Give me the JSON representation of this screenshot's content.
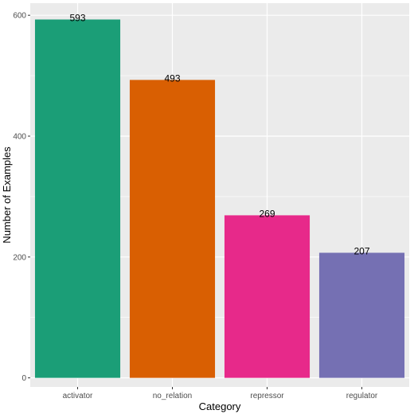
{
  "chart_data": {
    "type": "bar",
    "categories": [
      "activator",
      "no_relation",
      "repressor",
      "regulator"
    ],
    "values": [
      593,
      493,
      269,
      207
    ],
    "colors": [
      "#1b9e77",
      "#d95f02",
      "#e7298a",
      "#7570b3"
    ],
    "xlabel": "Category",
    "ylabel": "Number of Examples",
    "ylim": [
      -15,
      620
    ],
    "yticks": [
      0,
      200,
      400,
      600
    ],
    "grid": true,
    "panel_background": "#ebebeb",
    "grid_color": "#ffffff"
  }
}
